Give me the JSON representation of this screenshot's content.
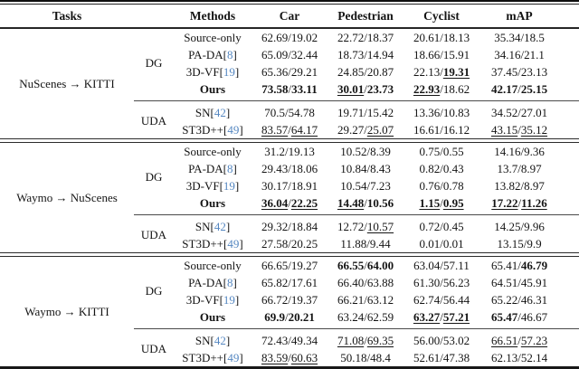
{
  "header": {
    "tasks": "Tasks",
    "methods": "Methods",
    "columns": [
      "Car",
      "Pedestrian",
      "Cyclist",
      "mAP"
    ]
  },
  "punct": {
    "sep": "/",
    "open": "[",
    "close": "]"
  },
  "colors": {
    "citation": "#5587c1",
    "text": "#141414",
    "rule": "#181818"
  },
  "groups": [
    {
      "task": "NuScenes → KITTI",
      "subgroups": [
        {
          "label": "DG",
          "rows": [
            {
              "m": {
                "n": "Source-only"
              },
              "c": [
                [
                  "62.69",
                  "19.02"
                ],
                [
                  "22.72",
                  "18.37"
                ],
                [
                  "20.61",
                  "18.13"
                ],
                [
                  "35.34",
                  "18.5"
                ]
              ]
            },
            {
              "m": {
                "n": "PA-DA",
                "c": "8"
              },
              "c": [
                [
                  "65.09",
                  "32.44"
                ],
                [
                  "18.73",
                  "14.94"
                ],
                [
                  "18.66",
                  "15.91"
                ],
                [
                  "34.16",
                  "21.1"
                ]
              ]
            },
            {
              "m": {
                "n": "3D-VF",
                "c": "19"
              },
              "c": [
                [
                  "65.36",
                  "29.21"
                ],
                [
                  "24.85",
                  "20.87"
                ],
                [
                  "22.13",
                  {
                    "t": "19.31",
                    "b": true,
                    "u": true
                  }
                ],
                [
                  "37.45",
                  "23.13"
                ]
              ]
            },
            {
              "m": {
                "n": "Ours",
                "b": true
              },
              "c": [
                [
                  {
                    "t": "73.58",
                    "b": true
                  },
                  {
                    "t": "33.11",
                    "b": true
                  }
                ],
                [
                  {
                    "t": "30.01",
                    "b": true,
                    "u": true
                  },
                  {
                    "t": "23.73",
                    "b": true
                  }
                ],
                [
                  {
                    "t": "22.93",
                    "b": true,
                    "u": true
                  },
                  "18.62"
                ],
                [
                  {
                    "t": "42.17",
                    "b": true
                  },
                  {
                    "t": "25.15",
                    "b": true
                  }
                ]
              ]
            }
          ]
        },
        {
          "label": "UDA",
          "rows": [
            {
              "m": {
                "n": "SN",
                "c": "42"
              },
              "c": [
                [
                  "70.5",
                  "54.78"
                ],
                [
                  "19.71",
                  "15.42"
                ],
                [
                  "13.36",
                  "10.83"
                ],
                [
                  "34.52",
                  "27.01"
                ]
              ]
            },
            {
              "m": {
                "n": "ST3D++",
                "c": "49"
              },
              "c": [
                [
                  {
                    "t": "83.57",
                    "u": true
                  },
                  {
                    "t": "64.17",
                    "u": true
                  }
                ],
                [
                  "29.27",
                  {
                    "t": "25.07",
                    "u": true
                  }
                ],
                [
                  "16.61",
                  "16.12"
                ],
                [
                  {
                    "t": "43.15",
                    "u": true
                  },
                  {
                    "t": "35.12",
                    "u": true
                  }
                ]
              ]
            }
          ]
        }
      ]
    },
    {
      "task": "Waymo → NuScenes",
      "subgroups": [
        {
          "label": "DG",
          "rows": [
            {
              "m": {
                "n": "Source-only"
              },
              "c": [
                [
                  "31.2",
                  "19.13"
                ],
                [
                  "10.52",
                  "8.39"
                ],
                [
                  "0.75",
                  "0.55"
                ],
                [
                  "14.16",
                  "9.36"
                ]
              ]
            },
            {
              "m": {
                "n": "PA-DA",
                "c": "8"
              },
              "c": [
                [
                  "29.43",
                  "18.06"
                ],
                [
                  "10.84",
                  "8.43"
                ],
                [
                  "0.82",
                  "0.43"
                ],
                [
                  "13.7",
                  "8.97"
                ]
              ]
            },
            {
              "m": {
                "n": "3D-VF",
                "c": "19"
              },
              "c": [
                [
                  "30.17",
                  "18.91"
                ],
                [
                  "10.54",
                  "7.23"
                ],
                [
                  "0.76",
                  "0.78"
                ],
                [
                  "13.82",
                  "8.97"
                ]
              ]
            },
            {
              "m": {
                "n": "Ours",
                "b": true
              },
              "c": [
                [
                  {
                    "t": "36.04",
                    "b": true,
                    "u": true
                  },
                  {
                    "t": "22.25",
                    "b": true,
                    "u": true
                  }
                ],
                [
                  {
                    "t": "14.48",
                    "b": true,
                    "u": true
                  },
                  {
                    "t": "10.56",
                    "b": true
                  }
                ],
                [
                  {
                    "t": "1.15",
                    "b": true,
                    "u": true
                  },
                  {
                    "t": "0.95",
                    "b": true,
                    "u": true
                  }
                ],
                [
                  {
                    "t": "17.22",
                    "b": true,
                    "u": true
                  },
                  {
                    "t": "11.26",
                    "b": true,
                    "u": true
                  }
                ]
              ]
            }
          ]
        },
        {
          "label": "UDA",
          "rows": [
            {
              "m": {
                "n": "SN",
                "c": "42"
              },
              "c": [
                [
                  "29.32",
                  "18.84"
                ],
                [
                  "12.72",
                  {
                    "t": "10.57",
                    "u": true
                  }
                ],
                [
                  "0.72",
                  "0.45"
                ],
                [
                  "14.25",
                  "9.96"
                ]
              ]
            },
            {
              "m": {
                "n": "ST3D++",
                "c": "49"
              },
              "c": [
                [
                  "27.58",
                  "20.25"
                ],
                [
                  "11.88",
                  "9.44"
                ],
                [
                  "0.01",
                  "0.01"
                ],
                [
                  "13.15",
                  "9.9"
                ]
              ]
            }
          ]
        }
      ]
    },
    {
      "task": "Waymo → KITTI",
      "subgroups": [
        {
          "label": "DG",
          "rows": [
            {
              "m": {
                "n": "Source-only"
              },
              "c": [
                [
                  "66.65",
                  "19.27"
                ],
                [
                  {
                    "t": "66.55",
                    "b": true
                  },
                  {
                    "t": "64.00",
                    "b": true
                  }
                ],
                [
                  "63.04",
                  "57.11"
                ],
                [
                  "65.41",
                  {
                    "t": "46.79",
                    "b": true
                  }
                ]
              ]
            },
            {
              "m": {
                "n": "PA-DA",
                "c": "8"
              },
              "c": [
                [
                  "65.82",
                  "17.61"
                ],
                [
                  "66.40",
                  "63.88"
                ],
                [
                  "61.30",
                  "56.23"
                ],
                [
                  "64.51",
                  "45.91"
                ]
              ]
            },
            {
              "m": {
                "n": "3D-VF",
                "c": "19"
              },
              "c": [
                [
                  "66.72",
                  "19.37"
                ],
                [
                  "66.21",
                  "63.12"
                ],
                [
                  "62.74",
                  "56.44"
                ],
                [
                  "65.22",
                  "46.31"
                ]
              ]
            },
            {
              "m": {
                "n": "Ours",
                "b": true
              },
              "c": [
                [
                  {
                    "t": "69.9",
                    "b": true
                  },
                  {
                    "t": "20.21",
                    "b": true
                  }
                ],
                [
                  "63.24",
                  "62.59"
                ],
                [
                  {
                    "t": "63.27",
                    "b": true,
                    "u": true
                  },
                  {
                    "t": "57.21",
                    "b": true,
                    "u": true
                  }
                ],
                [
                  {
                    "t": "65.47",
                    "b": true
                  },
                  "46.67"
                ]
              ]
            }
          ]
        },
        {
          "label": "UDA",
          "rows": [
            {
              "m": {
                "n": "SN",
                "c": "42"
              },
              "c": [
                [
                  "72.43",
                  "49.34"
                ],
                [
                  {
                    "t": "71.08",
                    "u": true
                  },
                  {
                    "t": "69.35",
                    "u": true
                  }
                ],
                [
                  "56.00",
                  "53.02"
                ],
                [
                  {
                    "t": "66.51",
                    "u": true
                  },
                  {
                    "t": "57.23",
                    "u": true
                  }
                ]
              ]
            },
            {
              "m": {
                "n": "ST3D++",
                "c": "49"
              },
              "c": [
                [
                  {
                    "t": "83.59",
                    "u": true
                  },
                  {
                    "t": "60.63",
                    "u": true
                  }
                ],
                [
                  "50.18",
                  "48.4"
                ],
                [
                  "52.61",
                  "47.38"
                ],
                [
                  "62.13",
                  "52.14"
                ]
              ]
            }
          ]
        }
      ]
    }
  ]
}
